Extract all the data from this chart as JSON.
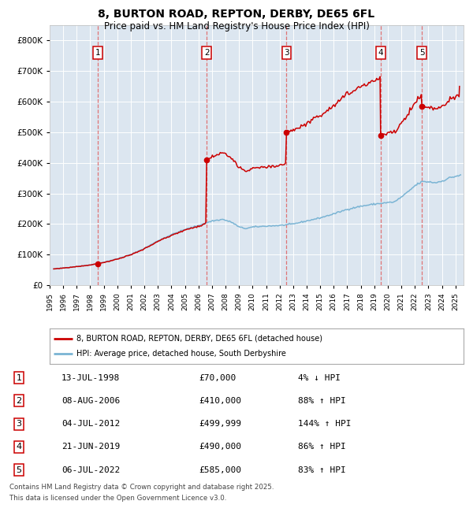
{
  "title": "8, BURTON ROAD, REPTON, DERBY, DE65 6FL",
  "subtitle": "Price paid vs. HM Land Registry's House Price Index (HPI)",
  "legend_red": "8, BURTON ROAD, REPTON, DERBY, DE65 6FL (detached house)",
  "legend_blue": "HPI: Average price, detached house, South Derbyshire",
  "footer_line1": "Contains HM Land Registry data © Crown copyright and database right 2025.",
  "footer_line2": "This data is licensed under the Open Government Licence v3.0.",
  "table_data": [
    {
      "num": "1",
      "date": "13-JUL-1998",
      "price": "£70,000",
      "pct": "4% ↓ HPI"
    },
    {
      "num": "2",
      "date": "08-AUG-2006",
      "price": "£410,000",
      "pct": "88% ↑ HPI"
    },
    {
      "num": "3",
      "date": "04-JUL-2012",
      "price": "£499,999",
      "pct": "144% ↑ HPI"
    },
    {
      "num": "4",
      "date": "21-JUN-2019",
      "price": "£490,000",
      "pct": "86% ↑ HPI"
    },
    {
      "num": "5",
      "date": "06-JUL-2022",
      "price": "£585,000",
      "pct": "83% ↑ HPI"
    }
  ],
  "trans_x": [
    1998.54,
    2006.61,
    2012.51,
    2019.47,
    2022.52
  ],
  "trans_y": [
    70000,
    410000,
    499999,
    490000,
    585000
  ],
  "ylim": [
    0,
    850000
  ],
  "yticks": [
    0,
    100000,
    200000,
    300000,
    400000,
    500000,
    600000,
    700000,
    800000
  ],
  "xlim_left": 1995.3,
  "xlim_right": 2025.6,
  "bg_color": "#dce6f0",
  "red_color": "#cc0000",
  "blue_color": "#7ab4d4",
  "grid_color": "#ffffff",
  "dash_color": "#e06060",
  "box_edge_color": "#cc0000"
}
